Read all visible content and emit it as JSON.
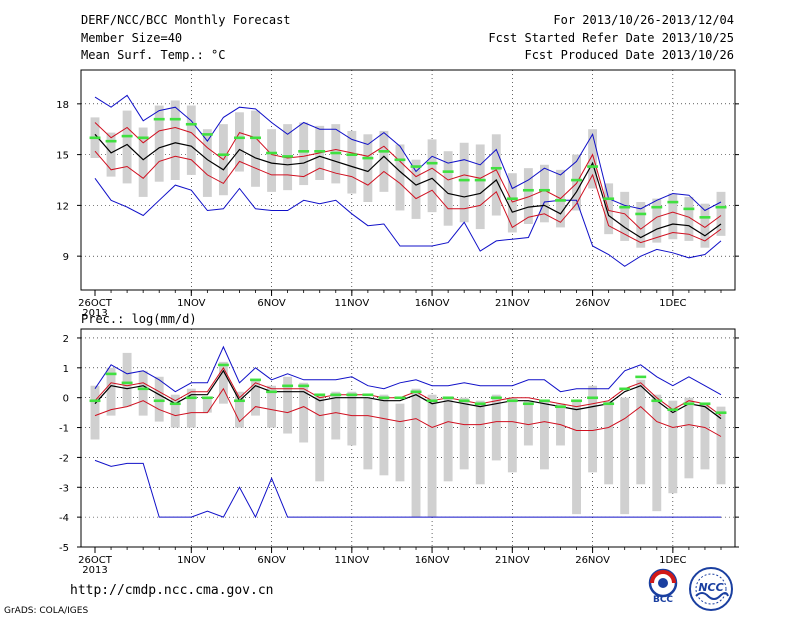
{
  "header": {
    "title": "DERF/NCC/BCC Monthly Forecast",
    "member_size": "Member Size=40",
    "variable": "Mean Surf. Temp.: °C",
    "forecast_period": "For 2013/10/26-2013/12/04",
    "fcst_started": "Fcst Started Refer Date 2013/10/25",
    "fcst_produced": "Fcst Produced Date 2013/10/26"
  },
  "footer": {
    "url": "http://cmdp.ncc.cma.gov.cn",
    "credit": "GrADS: COLA/IGES",
    "logo_bcc": "BCC",
    "logo_ncc": "NCC"
  },
  "colors": {
    "max_line": "#1010c8",
    "min_line": "#1010c8",
    "quartile_line": "#d01020",
    "median_line": "#000000",
    "ensemble_bar": "#d0d0d0",
    "mean_marker": "#40e040"
  },
  "chart_data": [
    {
      "type": "box",
      "subtitle": "",
      "ylabel": "",
      "ylim": [
        7,
        20
      ],
      "yticks": [
        9,
        12,
        15,
        18
      ],
      "x_tick_labels": [
        "26OCT\n2013",
        "1NOV",
        "6NOV",
        "11NOV",
        "16NOV",
        "21NOV",
        "26NOV",
        "1DEC"
      ],
      "x_tick_days": [
        0,
        6,
        11,
        16,
        21,
        26,
        31,
        36
      ],
      "grid": true,
      "days": 40,
      "series": {
        "max": [
          18.4,
          17.8,
          18.5,
          17.0,
          17.6,
          17.8,
          17.0,
          15.8,
          17.2,
          17.8,
          17.7,
          16.9,
          16.2,
          16.9,
          16.5,
          16.5,
          15.9,
          15.6,
          16.3,
          15.5,
          14.0,
          14.9,
          14.5,
          14.7,
          14.4,
          15.3,
          13.0,
          13.5,
          14.2,
          13.8,
          14.6,
          16.2,
          12.4,
          12.0,
          11.8,
          12.3,
          12.7,
          12.6,
          11.7,
          12.2
        ],
        "q_upper": [
          16.9,
          16.0,
          16.6,
          15.7,
          16.4,
          16.6,
          16.3,
          15.4,
          14.7,
          16.3,
          16.0,
          15.0,
          14.8,
          14.9,
          15.1,
          15.3,
          15.1,
          14.9,
          15.5,
          14.6,
          13.7,
          14.2,
          13.5,
          13.8,
          13.6,
          14.1,
          12.2,
          12.5,
          12.9,
          12.4,
          13.3,
          15.0,
          11.7,
          11.5,
          10.6,
          11.3,
          11.6,
          11.3,
          10.7,
          11.4
        ],
        "median": [
          16.2,
          15.1,
          15.6,
          14.7,
          15.4,
          15.7,
          15.5,
          14.7,
          14.1,
          15.3,
          14.8,
          14.5,
          14.4,
          14.5,
          14.9,
          14.6,
          14.3,
          14.0,
          14.9,
          14.0,
          13.2,
          13.6,
          12.7,
          12.5,
          12.7,
          13.5,
          11.6,
          11.9,
          12.0,
          11.5,
          12.8,
          14.5,
          11.4,
          10.7,
          10.1,
          10.6,
          10.9,
          10.8,
          10.2,
          10.9
        ],
        "q_lower": [
          15.2,
          14.1,
          14.3,
          13.6,
          14.6,
          14.9,
          14.7,
          13.8,
          13.3,
          14.6,
          14.2,
          13.8,
          13.8,
          13.7,
          14.2,
          13.9,
          13.7,
          13.2,
          14.0,
          13.3,
          12.4,
          12.9,
          11.8,
          11.8,
          12.0,
          12.8,
          10.7,
          11.3,
          11.5,
          11.0,
          12.1,
          13.8,
          10.8,
          10.3,
          9.8,
          10.1,
          10.4,
          10.3,
          9.9,
          10.6
        ],
        "min": [
          13.6,
          12.3,
          11.9,
          11.4,
          12.3,
          13.2,
          12.9,
          11.7,
          11.8,
          13.0,
          11.8,
          11.7,
          11.7,
          12.3,
          12.1,
          12.3,
          11.5,
          10.8,
          10.9,
          9.6,
          9.6,
          9.6,
          9.8,
          11.0,
          9.3,
          9.9,
          10.0,
          10.1,
          12.2,
          12.3,
          12.3,
          9.6,
          9.1,
          8.4,
          9.0,
          9.4,
          9.2,
          8.9,
          9.1,
          9.9
        ],
        "bar_top": [
          17.2,
          16.3,
          17.6,
          16.6,
          17.9,
          18.2,
          17.9,
          16.5,
          16.8,
          17.5,
          17.6,
          16.5,
          16.8,
          16.9,
          16.7,
          16.8,
          16.4,
          16.2,
          16.4,
          15.6,
          14.7,
          15.9,
          15.2,
          15.7,
          15.6,
          16.2,
          13.9,
          14.2,
          14.4,
          14.1,
          15.0,
          16.5,
          13.3,
          12.8,
          12.2,
          12.4,
          12.7,
          12.5,
          12.1,
          12.8
        ],
        "bar_bot": [
          14.8,
          13.7,
          13.3,
          12.5,
          13.4,
          13.5,
          13.8,
          12.5,
          12.6,
          14.0,
          13.1,
          12.8,
          12.9,
          13.2,
          13.5,
          13.3,
          12.7,
          12.2,
          12.8,
          11.7,
          11.2,
          11.6,
          10.8,
          11.0,
          10.6,
          11.4,
          10.4,
          10.9,
          11.0,
          10.7,
          11.7,
          13.0,
          10.3,
          9.9,
          9.5,
          9.8,
          10.0,
          9.9,
          9.5,
          10.2
        ],
        "mean": [
          16.0,
          15.8,
          16.1,
          16.0,
          17.1,
          17.1,
          16.8,
          16.2,
          15.0,
          16.0,
          16.0,
          15.1,
          14.9,
          15.2,
          15.2,
          15.1,
          15.0,
          14.8,
          15.2,
          14.7,
          14.3,
          14.5,
          14.0,
          13.5,
          13.5,
          14.2,
          12.4,
          12.9,
          12.9,
          12.3,
          13.5,
          14.3,
          12.4,
          11.9,
          11.5,
          11.9,
          12.2,
          11.8,
          11.3,
          11.9
        ]
      }
    },
    {
      "type": "box",
      "subtitle": "Prec.: log(mm/d)",
      "ylabel": "",
      "ylim": [
        -5,
        2.3
      ],
      "yticks": [
        -5,
        -4,
        -3,
        -2,
        -1,
        0,
        1,
        2
      ],
      "x_tick_labels": [
        "26OCT\n2013",
        "1NOV",
        "6NOV",
        "11NOV",
        "16NOV",
        "21NOV",
        "26NOV",
        "1DEC"
      ],
      "x_tick_days": [
        0,
        6,
        11,
        16,
        21,
        26,
        31,
        36
      ],
      "grid": true,
      "days": 40,
      "series": {
        "max": [
          0.3,
          1.1,
          0.8,
          0.9,
          0.6,
          0.2,
          0.5,
          0.5,
          1.7,
          0.5,
          1.0,
          0.6,
          0.8,
          0.6,
          0.6,
          0.6,
          0.7,
          0.4,
          0.3,
          0.5,
          0.6,
          0.4,
          0.4,
          0.5,
          0.4,
          0.4,
          0.4,
          0.6,
          0.6,
          0.2,
          0.3,
          0.3,
          0.3,
          0.9,
          1.1,
          0.7,
          0.4,
          0.7,
          0.4,
          0.1
        ],
        "q_upper": [
          -0.1,
          0.5,
          0.4,
          0.5,
          0.2,
          -0.1,
          0.2,
          0.2,
          1.0,
          0.0,
          0.5,
          0.3,
          0.3,
          0.3,
          0.0,
          0.1,
          0.1,
          0.1,
          0.0,
          0.0,
          0.2,
          -0.1,
          0.0,
          -0.1,
          -0.2,
          -0.1,
          0.0,
          0.0,
          -0.1,
          -0.2,
          -0.3,
          -0.2,
          -0.1,
          0.3,
          0.5,
          0.0,
          -0.4,
          -0.1,
          -0.2,
          -0.6
        ],
        "median": [
          -0.2,
          0.4,
          0.3,
          0.4,
          0.1,
          -0.2,
          0.1,
          0.1,
          0.9,
          -0.1,
          0.4,
          0.2,
          0.2,
          0.2,
          -0.1,
          0.0,
          0.0,
          0.0,
          -0.1,
          -0.1,
          0.1,
          -0.2,
          -0.1,
          -0.2,
          -0.3,
          -0.2,
          -0.1,
          -0.1,
          -0.2,
          -0.3,
          -0.4,
          -0.3,
          -0.2,
          0.2,
          0.4,
          -0.1,
          -0.5,
          -0.2,
          -0.3,
          -0.7
        ],
        "q_lower": [
          -0.6,
          -0.4,
          -0.3,
          -0.1,
          -0.4,
          -0.6,
          -0.5,
          -0.5,
          0.3,
          -0.8,
          -0.3,
          -0.4,
          -0.5,
          -0.3,
          -0.6,
          -0.5,
          -0.6,
          -0.6,
          -0.7,
          -0.8,
          -0.7,
          -1.0,
          -0.8,
          -0.9,
          -0.9,
          -0.8,
          -0.8,
          -0.9,
          -0.8,
          -0.9,
          -1.1,
          -1.1,
          -1.0,
          -0.7,
          -0.3,
          -0.8,
          -1.0,
          -0.9,
          -1.0,
          -1.3
        ],
        "min": [
          -2.1,
          -2.3,
          -2.2,
          -2.2,
          -4.0,
          -4.0,
          -4.0,
          -3.8,
          -4.0,
          -3.0,
          -4.0,
          -2.7,
          -4.0,
          -4.0,
          -4.0,
          -4.0,
          -4.0,
          -4.0,
          -4.0,
          -4.0,
          -4.0,
          -4.0,
          -4.0,
          -4.0,
          -4.0,
          -4.0,
          -4.0,
          -4.0,
          -4.0,
          -4.0,
          -4.0,
          -4.0,
          -4.0,
          -4.0,
          -4.0,
          -4.0,
          -4.0,
          -4.0,
          -4.0,
          -4.0
        ],
        "bar_top": [
          0.4,
          1.0,
          1.5,
          0.9,
          0.7,
          0.1,
          0.3,
          0.0,
          1.2,
          0.2,
          0.6,
          0.4,
          0.7,
          0.5,
          0.1,
          0.2,
          0.2,
          0.0,
          0.1,
          -0.2,
          0.3,
          0.1,
          0.0,
          0.0,
          -0.1,
          0.1,
          0.0,
          -0.1,
          -0.1,
          -0.2,
          -0.1,
          0.4,
          -0.1,
          0.0,
          0.6,
          0.1,
          -0.1,
          0.0,
          -0.2,
          -0.3
        ],
        "bar_bot": [
          -1.4,
          -0.6,
          -0.3,
          -0.6,
          -0.8,
          -1.0,
          -1.0,
          -0.5,
          -0.2,
          -1.0,
          -0.6,
          -1.0,
          -1.2,
          -1.5,
          -2.8,
          -1.4,
          -1.6,
          -2.4,
          -2.6,
          -2.8,
          -4.0,
          -4.0,
          -2.8,
          -2.4,
          -2.9,
          -2.1,
          -2.5,
          -1.6,
          -2.4,
          -1.6,
          -3.9,
          -2.5,
          -2.9,
          -3.9,
          -2.9,
          -3.8,
          -3.2,
          -2.7,
          -2.4,
          -2.9
        ],
        "mean": [
          -0.1,
          0.8,
          0.5,
          0.3,
          -0.1,
          -0.2,
          0.0,
          0.0,
          1.1,
          -0.1,
          0.6,
          0.2,
          0.4,
          0.4,
          0.1,
          0.1,
          0.1,
          0.1,
          0.0,
          0.0,
          0.2,
          -0.1,
          0.0,
          -0.1,
          -0.2,
          0.0,
          -0.1,
          -0.2,
          -0.1,
          -0.3,
          -0.1,
          0.0,
          -0.2,
          0.3,
          0.7,
          -0.1,
          -0.4,
          -0.2,
          -0.2,
          -0.5
        ]
      }
    }
  ]
}
